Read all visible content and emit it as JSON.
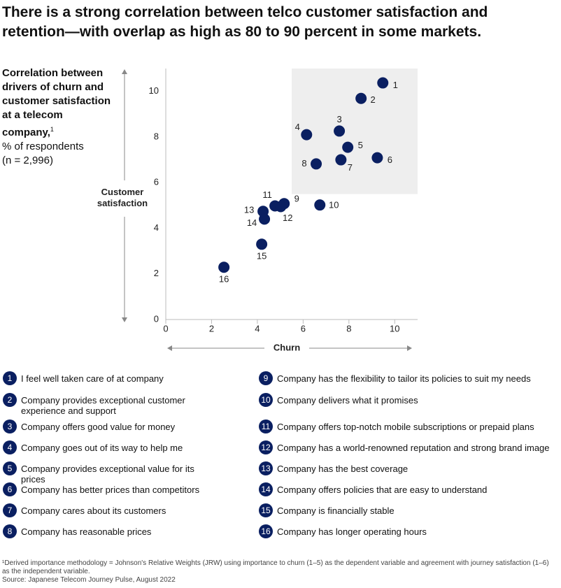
{
  "title": "There is a strong correlation between telco customer satisfaction and retention—with overlap as high as 80 to 90 percent in some markets.",
  "chart_data": {
    "type": "scatter",
    "heading": "Correlation between drivers of churn and customer satisfaction at a telecom company,",
    "heading_note": "1",
    "subtitle": "% of respondents",
    "sample": "(n = 2,996)",
    "x_label": "Churn",
    "y_label": "Customer satisfaction",
    "xlim": [
      0,
      11
    ],
    "ylim": [
      0,
      11
    ],
    "xticks": [
      0,
      2,
      4,
      6,
      8,
      10
    ],
    "yticks": [
      0,
      2,
      4,
      6,
      8,
      10
    ],
    "highlight": {
      "xlim": [
        5.5,
        11
      ],
      "ylim": [
        5.5,
        11
      ]
    },
    "series": [
      {
        "color": "#0a1f61",
        "labels": [
          "1",
          "2",
          "3",
          "4",
          "5",
          "6",
          "7",
          "8",
          "9",
          "10",
          "11",
          "12",
          "13",
          "14",
          "15",
          "16"
        ],
        "x": [
          9.48,
          8.53,
          7.58,
          6.15,
          7.95,
          9.24,
          7.65,
          6.57,
          5.17,
          6.73,
          4.77,
          5.02,
          4.25,
          4.31,
          4.19,
          2.54
        ],
        "values": [
          10.37,
          9.69,
          8.26,
          8.1,
          7.55,
          7.09,
          7.0,
          6.82,
          5.08,
          5.02,
          4.98,
          4.95,
          4.74,
          4.4,
          3.3,
          2.29
        ]
      }
    ]
  },
  "legend": [
    {
      "id": "1",
      "text": "I feel well taken care of at company"
    },
    {
      "id": "2",
      "text": "Company provides exceptional customer experience and support"
    },
    {
      "id": "3",
      "text": "Company offers good value for money"
    },
    {
      "id": "4",
      "text": "Company goes out of its way to help me"
    },
    {
      "id": "5",
      "text": "Company provides exceptional value for its prices"
    },
    {
      "id": "6",
      "text": "Company has better prices than competitors"
    },
    {
      "id": "7",
      "text": "Company cares about its customers"
    },
    {
      "id": "8",
      "text": "Company has reasonable prices"
    },
    {
      "id": "9",
      "text": "Company has the flexibility to tailor its policies to suit my needs"
    },
    {
      "id": "10",
      "text": "Company delivers what it promises"
    },
    {
      "id": "11",
      "text": "Company offers top-notch mobile subscriptions or prepaid plans"
    },
    {
      "id": "12",
      "text": "Company has a world-renowned reputation and strong brand image"
    },
    {
      "id": "13",
      "text": "Company has the best coverage"
    },
    {
      "id": "14",
      "text": "Company offers policies that are easy to understand"
    },
    {
      "id": "15",
      "text": "Company is financially stable"
    },
    {
      "id": "16",
      "text": "Company has longer operating hours"
    }
  ],
  "footnote": "¹Derived importance methodology = Johnson's Relative Weights (JRW) using importance to churn (1–5) as the dependent variable and agreement with journey satisfaction (1–6) as the independent variable.",
  "source": "Source: Japanese Telecom Journey Pulse, August 2022"
}
